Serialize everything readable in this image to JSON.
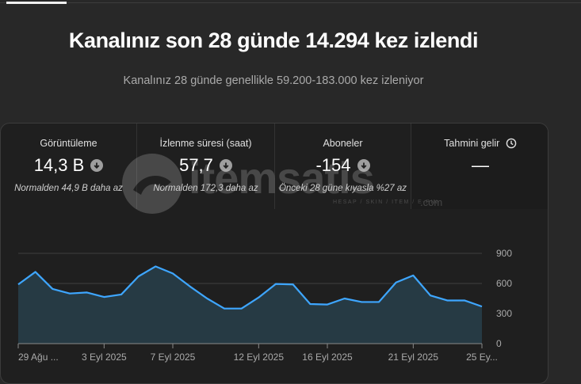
{
  "headline": "Kanalınız son 28 günde 14.294 kez izlendi",
  "subline": "Kanalınız 28 günde genellikle 59.200-183.000 kez izleniyor",
  "metrics": [
    {
      "label": "Görüntüleme",
      "value": "14,3 B",
      "note": "Normalden 44,9 B daha az",
      "icon": "arrow-down-icon"
    },
    {
      "label": "İzlenme süresi (saat)",
      "value": "57,7",
      "note": "Normalden 172,3 daha az",
      "icon": "arrow-down-icon"
    },
    {
      "label": "Aboneler",
      "value": "-154",
      "note": "Önceki 28 güne kıyasla %27 az",
      "icon": "arrow-down-icon"
    },
    {
      "label": "Tahmini gelir",
      "value": "—",
      "note": "",
      "icon": "clock-icon"
    }
  ],
  "watermark": {
    "text": "itemsatis",
    "sub": "HESAP / SKIN / ITEM / E-PIN",
    "suffix": ".com"
  },
  "colors": {
    "line": "#3ea6ff",
    "area": "#263a44",
    "grid": "#3f3f3f"
  },
  "chart_data": {
    "type": "area",
    "x": [
      "29 Ağu",
      "30 Ağu",
      "31 Ağu",
      "1 Eyl",
      "2 Eyl",
      "3 Eyl",
      "4 Eyl",
      "5 Eyl",
      "6 Eyl",
      "7 Eyl",
      "8 Eyl",
      "9 Eyl",
      "10 Eyl",
      "11 Eyl",
      "12 Eyl",
      "13 Eyl",
      "14 Eyl",
      "15 Eyl",
      "16 Eyl",
      "17 Eyl",
      "18 Eyl",
      "19 Eyl",
      "20 Eyl",
      "21 Eyl",
      "22 Eyl",
      "23 Eyl",
      "24 Eyl",
      "25 Eyl"
    ],
    "values": [
      590,
      715,
      545,
      500,
      510,
      465,
      490,
      670,
      770,
      700,
      570,
      450,
      350,
      350,
      460,
      595,
      590,
      395,
      390,
      450,
      415,
      415,
      610,
      680,
      480,
      430,
      430,
      370
    ],
    "tick_labels": [
      "29 Ağu ...",
      "3 Eyl 2025",
      "7 Eyl 2025",
      "12 Eyl 2025",
      "16 Eyl 2025",
      "21 Eyl 2025",
      "25 Ey..."
    ],
    "tick_index": [
      0,
      5,
      9,
      14,
      18,
      23,
      27
    ],
    "y_ticks": [
      0,
      300,
      600,
      900
    ],
    "y_tick_labels": [
      "0",
      "300",
      "600",
      "900"
    ],
    "ylim": [
      0,
      900
    ],
    "grid": true,
    "title": "",
    "xlabel": "",
    "ylabel": ""
  }
}
